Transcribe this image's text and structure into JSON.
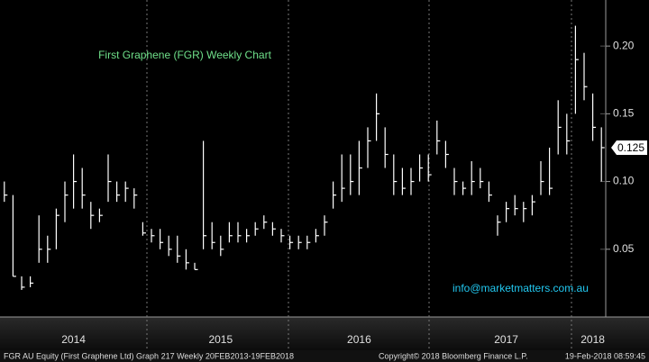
{
  "chart_data": {
    "type": "hlc",
    "title": "First Graphene (FGR) Weekly Chart",
    "annotation": "info@marketmatters.com.au",
    "footer_left": "FGR AU Equity (First Graphene Ltd) Graph 217  Weekly 20FEB2013-19FEB2018",
    "footer_center": "Copyright© 2018 Bloomberg Finance L.P.",
    "footer_right": "19-Feb-2018 08:59:45",
    "color": "#ffffff",
    "title_color": "#6fe08a",
    "annotation_color": "#22c8f0",
    "categories": [
      null,
      null,
      null,
      null,
      null,
      null,
      null,
      null,
      "2014",
      null,
      null,
      null,
      null,
      null,
      null,
      null,
      null,
      null,
      null,
      null,
      null,
      null,
      null,
      null,
      null,
      "2015",
      null,
      null,
      null,
      null,
      null,
      null,
      null,
      null,
      null,
      null,
      null,
      null,
      null,
      null,
      null,
      "2016",
      null,
      null,
      null,
      null,
      null,
      null,
      null,
      null,
      null,
      null,
      null,
      null,
      null,
      null,
      null,
      null,
      "2017",
      null,
      null,
      null,
      null,
      null,
      null,
      null,
      null,
      null,
      "2018",
      null
    ],
    "high": [
      0.1,
      0.09,
      0.03,
      0.03,
      0.075,
      0.06,
      0.08,
      0.1,
      0.12,
      0.11,
      0.085,
      0.08,
      0.12,
      0.1,
      0.1,
      0.095,
      0.07,
      0.065,
      0.065,
      0.06,
      0.06,
      0.05,
      0.04,
      0.13,
      0.07,
      0.06,
      0.07,
      0.07,
      0.065,
      0.07,
      0.075,
      0.07,
      0.065,
      0.06,
      0.06,
      0.06,
      0.065,
      0.075,
      0.1,
      0.12,
      0.12,
      0.13,
      0.14,
      0.165,
      0.14,
      0.12,
      0.11,
      0.11,
      0.12,
      0.12,
      0.145,
      0.13,
      0.11,
      0.1,
      0.115,
      0.11,
      0.1,
      0.075,
      0.085,
      0.09,
      0.085,
      0.09,
      0.115,
      0.125,
      0.16,
      0.15,
      0.215,
      0.195,
      0.165,
      0.14
    ],
    "low": [
      0.085,
      0.03,
      0.02,
      0.022,
      0.04,
      0.04,
      0.05,
      0.07,
      0.08,
      0.08,
      0.065,
      0.07,
      0.085,
      0.085,
      0.085,
      0.08,
      0.06,
      0.055,
      0.05,
      0.045,
      0.04,
      0.035,
      0.035,
      0.05,
      0.05,
      0.045,
      0.055,
      0.055,
      0.055,
      0.06,
      0.065,
      0.06,
      0.055,
      0.05,
      0.05,
      0.05,
      0.055,
      0.06,
      0.08,
      0.085,
      0.09,
      0.09,
      0.11,
      0.13,
      0.11,
      0.09,
      0.09,
      0.09,
      0.1,
      0.1,
      0.12,
      0.11,
      0.09,
      0.09,
      0.09,
      0.095,
      0.085,
      0.06,
      0.07,
      0.075,
      0.07,
      0.075,
      0.09,
      0.09,
      0.12,
      0.12,
      0.15,
      0.16,
      0.13,
      0.1
    ],
    "close": [
      0.09,
      0.03,
      0.022,
      0.025,
      0.05,
      0.05,
      0.075,
      0.09,
      0.1,
      0.09,
      0.075,
      0.075,
      0.1,
      0.09,
      0.095,
      0.09,
      0.062,
      0.06,
      0.055,
      0.05,
      0.045,
      0.04,
      0.035,
      0.06,
      0.055,
      0.05,
      0.06,
      0.06,
      0.06,
      0.065,
      0.07,
      0.065,
      0.06,
      0.055,
      0.055,
      0.055,
      0.06,
      0.07,
      0.09,
      0.095,
      0.1,
      0.11,
      0.13,
      0.15,
      0.12,
      0.1,
      0.095,
      0.1,
      0.11,
      0.105,
      0.13,
      0.12,
      0.1,
      0.095,
      0.1,
      0.1,
      0.09,
      0.07,
      0.08,
      0.08,
      0.08,
      0.085,
      0.1,
      0.095,
      0.14,
      0.13,
      0.19,
      0.17,
      0.14,
      0.125
    ],
    "last_price": 0.125,
    "ylim": [
      0,
      0.234
    ],
    "yticks": [
      0.05,
      {
        "value": 0.1,
        "label": "0.10"
      },
      0.15,
      {
        "value": 0.2,
        "label": "0.20"
      }
    ],
    "grid": true
  }
}
